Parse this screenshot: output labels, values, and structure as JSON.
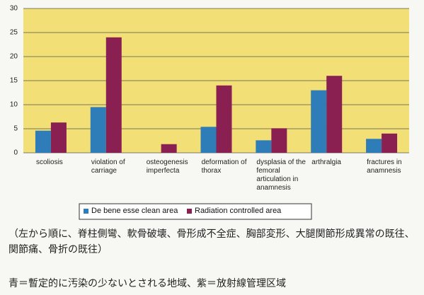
{
  "chart_data": {
    "type": "bar",
    "categories": [
      "scoliosis",
      "violation of carriage",
      "osteogenesis imperfecta",
      "deformation of thorax",
      "dysplasia of the femoral articulation in anamnesis",
      "arthralgia",
      "fractures in anamnesis"
    ],
    "series": [
      {
        "name": "De bene esse clean area",
        "color": "#2f7db8",
        "values": [
          4.6,
          9.5,
          0,
          5.4,
          2.6,
          13,
          2.9
        ]
      },
      {
        "name": "Radiation controlled area",
        "color": "#8a1f52",
        "values": [
          6.3,
          24,
          1.8,
          14,
          5.1,
          16,
          4
        ]
      }
    ],
    "ylim": [
      0,
      30
    ],
    "yticks": [
      0,
      5,
      10,
      15,
      20,
      25,
      30
    ],
    "grid": true,
    "legend": "bottom",
    "annotations": [
      "（左から順に、脊柱側彎、軟骨破壊、骨形成不全症、胸部変形、大腿関節形成異常の既往、関節痛、骨折の既往）",
      "青＝暫定的に汚染の少ないとされる地域、紫＝放射線管理区域"
    ]
  }
}
